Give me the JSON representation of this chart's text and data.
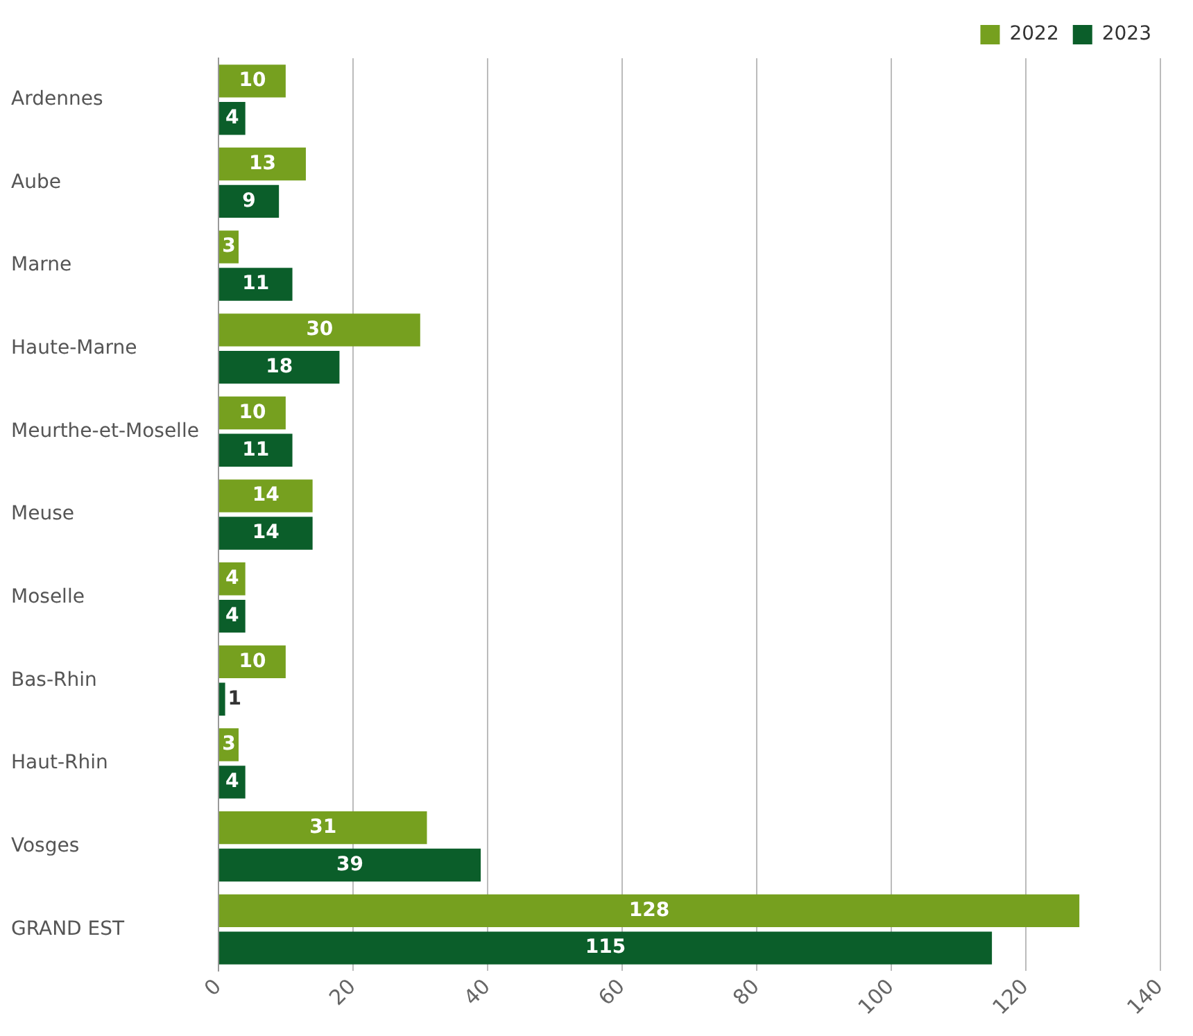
{
  "chart_data": {
    "type": "bar",
    "orientation": "horizontal",
    "categories": [
      "Ardennes",
      "Aube",
      "Marne",
      "Haute-Marne",
      "Meurthe-et-Moselle",
      "Meuse",
      "Moselle",
      "Bas-Rhin",
      "Haut-Rhin",
      "Vosges",
      "GRAND EST"
    ],
    "series": [
      {
        "name": "2022",
        "color": "#76a01f",
        "values": [
          10,
          13,
          3,
          30,
          10,
          14,
          4,
          10,
          3,
          31,
          128
        ]
      },
      {
        "name": "2023",
        "color": "#0b5e2a",
        "values": [
          4,
          9,
          11,
          18,
          11,
          14,
          4,
          1,
          4,
          39,
          115
        ]
      }
    ],
    "xlim": [
      0,
      140
    ],
    "xticks": [
      0,
      20,
      40,
      60,
      80,
      100,
      120,
      140
    ],
    "grid": "x",
    "legend": "top right",
    "data_labels": true
  }
}
